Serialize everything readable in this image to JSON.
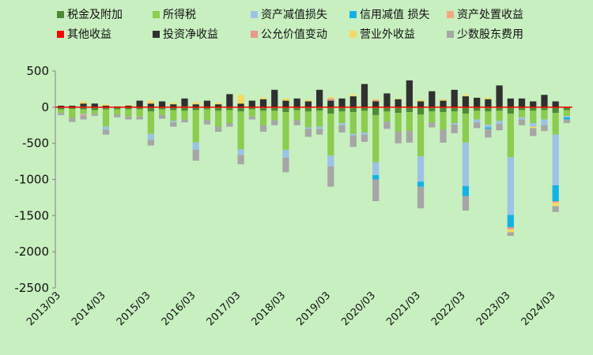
{
  "chart_data": {
    "type": "bar",
    "stacked": true,
    "title": "",
    "xlabel": "",
    "ylabel": "",
    "ylim": [
      -2500,
      500
    ],
    "yticks": [
      500,
      0,
      -500,
      -1000,
      -1500,
      -2000,
      -2500
    ],
    "grid": false,
    "legend_position": "top",
    "x_tick_labels": [
      "2013/03",
      "2014/03",
      "2015/03",
      "2016/03",
      "2017/03",
      "2018/03",
      "2019/03",
      "2020/03",
      "2021/03",
      "2022/03",
      "2023/03",
      "2024/03"
    ],
    "categories": [
      "2013/03",
      "2013/06",
      "2013/09",
      "2013/12",
      "2014/03",
      "2014/06",
      "2014/09",
      "2014/12",
      "2015/03",
      "2015/06",
      "2015/09",
      "2015/12",
      "2016/03",
      "2016/06",
      "2016/09",
      "2016/12",
      "2017/03",
      "2017/06",
      "2017/09",
      "2017/12",
      "2018/03",
      "2018/06",
      "2018/09",
      "2018/12",
      "2019/03",
      "2019/06",
      "2019/09",
      "2019/12",
      "2020/03",
      "2020/06",
      "2020/09",
      "2020/12",
      "2021/03",
      "2021/06",
      "2021/09",
      "2021/12",
      "2022/03",
      "2022/06",
      "2022/09",
      "2022/12",
      "2023/03",
      "2023/06",
      "2023/09",
      "2023/12",
      "2024/03",
      "2024/06"
    ],
    "series": [
      {
        "name": "税金及附加",
        "color": "#4e8a36",
        "values": [
          -30,
          -25,
          -30,
          -40,
          -30,
          -30,
          -30,
          -30,
          -60,
          -30,
          -40,
          -50,
          -40,
          -30,
          -50,
          -40,
          -60,
          -30,
          -50,
          -50,
          -70,
          -40,
          -60,
          -50,
          -90,
          -60,
          -70,
          -50,
          -110,
          -60,
          -80,
          -70,
          -100,
          -60,
          -70,
          -60,
          -90,
          -50,
          -60,
          -50,
          -90,
          -40,
          -50,
          -40,
          -80,
          -40
        ]
      },
      {
        "name": "所得税",
        "color": "#8ccc4e",
        "values": [
          -50,
          -120,
          -60,
          -50,
          -240,
          -70,
          -100,
          -100,
          -310,
          -80,
          -150,
          -120,
          -450,
          -150,
          -220,
          -180,
          -520,
          -100,
          -200,
          -130,
          -520,
          -140,
          -220,
          -220,
          -580,
          -160,
          -300,
          -300,
          -650,
          -140,
          -260,
          -260,
          -580,
          -150,
          -240,
          -160,
          -400,
          -120,
          -180,
          -140,
          -600,
          -100,
          -170,
          -130,
          -300,
          -80
        ]
      },
      {
        "name": "资产减值损失",
        "color": "#9cc3e6",
        "values": [
          0,
          0,
          -10,
          0,
          -40,
          0,
          0,
          0,
          -80,
          0,
          -20,
          0,
          -100,
          0,
          0,
          0,
          -80,
          0,
          0,
          0,
          -110,
          0,
          -20,
          -30,
          -150,
          -30,
          -20,
          -30,
          -180,
          0,
          0,
          0,
          -350,
          0,
          0,
          -20,
          -600,
          -40,
          -40,
          -40,
          -800,
          -30,
          -50,
          -80,
          -700,
          -20
        ]
      },
      {
        "name": "信用减值  损失",
        "color": "#13b2e6",
        "values": [
          0,
          0,
          0,
          0,
          0,
          0,
          0,
          0,
          0,
          0,
          0,
          0,
          0,
          0,
          0,
          0,
          0,
          0,
          0,
          0,
          0,
          0,
          0,
          0,
          0,
          0,
          0,
          0,
          -60,
          0,
          0,
          0,
          -70,
          0,
          0,
          0,
          -140,
          0,
          -20,
          0,
          -170,
          0,
          0,
          0,
          -220,
          -30
        ]
      },
      {
        "name": "资产处置收益",
        "color": "#f3a882",
        "values": [
          0,
          0,
          10,
          0,
          0,
          0,
          0,
          0,
          0,
          0,
          0,
          10,
          0,
          0,
          0,
          0,
          0,
          0,
          0,
          0,
          0,
          0,
          0,
          0,
          0,
          0,
          0,
          0,
          0,
          0,
          0,
          0,
          0,
          0,
          0,
          0,
          0,
          0,
          0,
          0,
          0,
          0,
          0,
          0,
          0,
          0
        ]
      },
      {
        "name": "其他收益",
        "color": "#ff0000",
        "values": [
          0,
          0,
          0,
          0,
          0,
          0,
          0,
          0,
          0,
          0,
          0,
          0,
          0,
          0,
          0,
          0,
          0,
          0,
          0,
          0,
          0,
          0,
          0,
          0,
          0,
          0,
          0,
          0,
          0,
          0,
          0,
          0,
          0,
          0,
          0,
          0,
          0,
          0,
          0,
          0,
          0,
          0,
          0,
          0,
          0,
          0
        ]
      },
      {
        "name": "投资净收益",
        "color": "#303030",
        "values": [
          20,
          20,
          40,
          50,
          20,
          10,
          20,
          90,
          50,
          80,
          40,
          110,
          40,
          90,
          40,
          180,
          50,
          90,
          110,
          240,
          90,
          120,
          80,
          240,
          90,
          120,
          150,
          320,
          80,
          190,
          110,
          370,
          80,
          220,
          90,
          240,
          150,
          130,
          110,
          300,
          120,
          120,
          80,
          170,
          80,
          0
        ]
      },
      {
        "name": "公允价值变动",
        "color": "#e99988",
        "values": [
          0,
          0,
          -20,
          0,
          0,
          0,
          0,
          0,
          0,
          0,
          0,
          0,
          0,
          0,
          0,
          0,
          0,
          0,
          0,
          0,
          0,
          0,
          0,
          0,
          30,
          0,
          0,
          0,
          20,
          0,
          0,
          0,
          0,
          0,
          0,
          0,
          0,
          0,
          0,
          0,
          -30,
          0,
          0,
          0,
          -20,
          0
        ]
      },
      {
        "name": "营业外收益",
        "color": "#f7d864",
        "values": [
          0,
          0,
          30,
          0,
          20,
          0,
          10,
          0,
          40,
          0,
          20,
          0,
          30,
          0,
          20,
          0,
          120,
          0,
          20,
          0,
          30,
          0,
          20,
          0,
          20,
          0,
          20,
          0,
          10,
          0,
          10,
          0,
          20,
          0,
          20,
          0,
          20,
          0,
          20,
          0,
          -40,
          0,
          -20,
          0,
          -50,
          0
        ]
      },
      {
        "name": "少数股东费用",
        "color": "#a6a6a6",
        "values": [
          -30,
          -60,
          -50,
          -30,
          -70,
          -40,
          -40,
          -40,
          -80,
          -50,
          -60,
          -40,
          -150,
          -60,
          -70,
          -50,
          -130,
          -40,
          -90,
          -70,
          -200,
          -70,
          -110,
          -80,
          -280,
          -100,
          -160,
          -100,
          -300,
          -100,
          -160,
          -160,
          -300,
          -70,
          -180,
          -120,
          -200,
          -80,
          -120,
          -90,
          -50,
          -80,
          -110,
          -80,
          -80,
          -50
        ]
      }
    ]
  }
}
